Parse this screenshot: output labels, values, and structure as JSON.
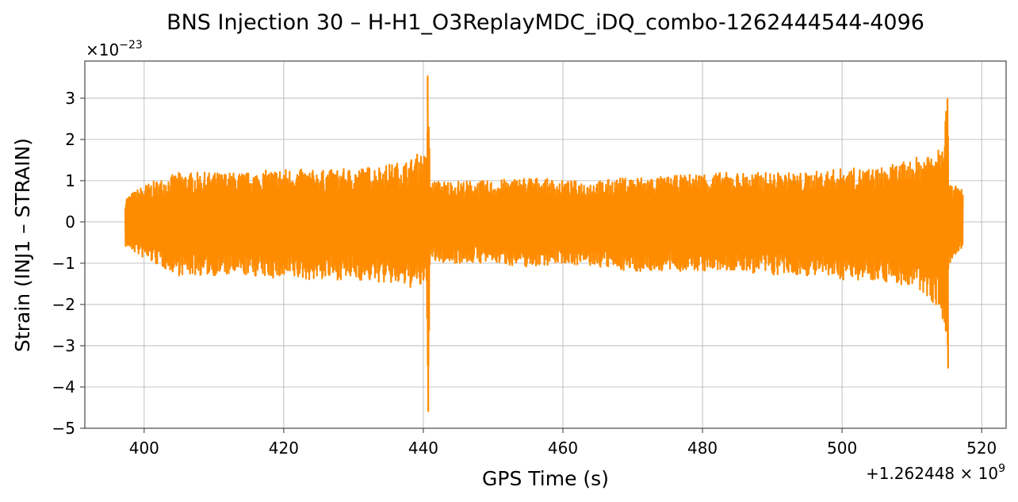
{
  "chart_data": {
    "type": "line",
    "title": "BNS Injection 30 – H-H1_O3ReplayMDC_iDQ_combo-1262444544-4096",
    "xlabel": "GPS Time (s)",
    "ylabel": "Strain (INJ1 – STRAIN)",
    "x_offset_label": "+1.262448×10^9",
    "y_multiplier_label": "×10^-23",
    "xlim": [
      391.5,
      523.5
    ],
    "ylim": [
      -5,
      3.9
    ],
    "x_ticks": [
      400,
      420,
      440,
      460,
      480,
      500,
      520
    ],
    "y_ticks": [
      -5,
      -4,
      -3,
      -2,
      -1,
      0,
      1,
      2,
      3
    ],
    "grid": true,
    "legend": "none",
    "line_color": "#ff8c00",
    "series": [
      {
        "x": [
          397.3,
          400,
          405,
          410,
          415,
          420,
          425,
          430,
          435,
          438,
          439.5,
          440.5,
          440.62,
          441,
          445,
          450,
          455,
          460,
          465,
          470,
          475,
          480,
          485,
          490,
          495,
          500,
          505,
          510,
          512,
          514,
          515.1,
          515.25,
          516,
          517.3
        ],
        "upper": [
          0.6,
          0.9,
          1.2,
          1.2,
          1.2,
          1.3,
          1.25,
          1.3,
          1.4,
          1.5,
          1.7,
          1.6,
          3.55,
          1.0,
          1.0,
          1.0,
          1.1,
          1.0,
          1.0,
          1.1,
          1.1,
          1.2,
          1.2,
          1.2,
          1.2,
          1.3,
          1.3,
          1.5,
          1.7,
          2.0,
          3.0,
          1.2,
          0.9,
          0.85
        ],
        "lower": [
          -0.6,
          -0.9,
          -1.3,
          -1.3,
          -1.3,
          -1.4,
          -1.4,
          -1.4,
          -1.5,
          -1.6,
          -1.6,
          -1.7,
          -4.6,
          -1.0,
          -1.0,
          -1.0,
          -1.1,
          -1.0,
          -1.1,
          -1.2,
          -1.2,
          -1.2,
          -1.2,
          -1.3,
          -1.3,
          -1.4,
          -1.4,
          -1.6,
          -1.8,
          -2.1,
          -3.55,
          -1.2,
          -0.9,
          -0.7
        ]
      }
    ]
  }
}
